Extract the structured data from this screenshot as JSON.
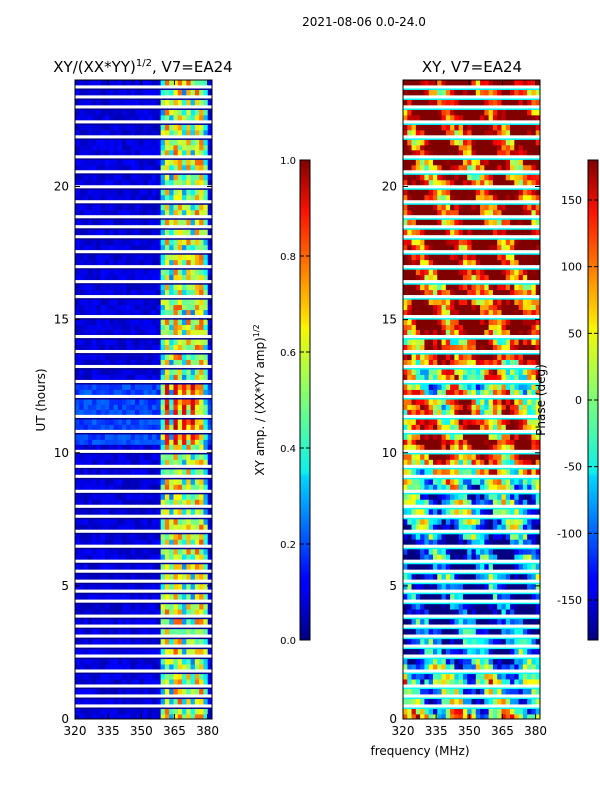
{
  "suptitle": "2021-08-06 0.0-24.0",
  "chart_data": [
    {
      "type": "heatmap",
      "title": "XY/(XX*YY)",
      "title_exponent": "1/2",
      "title_suffix": ", V7=EA24",
      "xlabel": "",
      "ylabel": "UT (hours)",
      "xlim": [
        320,
        382
      ],
      "ylim": [
        0,
        24
      ],
      "xticks": [
        320,
        335,
        350,
        365,
        380
      ],
      "yticks": [
        0,
        5,
        10,
        15,
        20
      ],
      "colorbar": {
        "label": "XY amp. / (XX*YY amp)",
        "label_exponent": "1/2",
        "range": [
          0.0,
          1.0
        ],
        "ticks": [
          "0.0",
          "0.2",
          "0.4",
          "0.6",
          "0.8",
          "1.0"
        ],
        "colormap": "jet"
      }
    },
    {
      "type": "heatmap",
      "title": "XY, V7=EA24",
      "xlabel": "frequency (MHz)",
      "ylabel": "",
      "xlim": [
        320,
        382
      ],
      "ylim": [
        0,
        24
      ],
      "xticks": [
        320,
        335,
        350,
        365,
        380
      ],
      "yticks": [
        0,
        5,
        10,
        15,
        20
      ],
      "colorbar": {
        "label": "Phase (deg)",
        "range": [
          -180,
          180
        ],
        "ticks": [
          "-150",
          "-100",
          "-50",
          "0",
          "50",
          "100",
          "150"
        ],
        "colormap": "jet"
      }
    }
  ]
}
